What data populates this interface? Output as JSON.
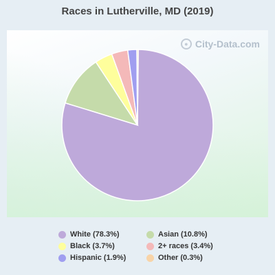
{
  "chart_data": {
    "type": "pie",
    "title": "Races in Lutherville, MD (2019)",
    "slices": [
      {
        "label": "White (78.3%)",
        "value": 78.3,
        "color": "#bea9da"
      },
      {
        "label": "Asian (10.8%)",
        "value": 10.8,
        "color": "#c5dbaa"
      },
      {
        "label": "Black (3.7%)",
        "value": 3.7,
        "color": "#fefe9c"
      },
      {
        "label": "2+ races (3.4%)",
        "value": 3.4,
        "color": "#f4b9b9"
      },
      {
        "label": "Hispanic (1.9%)",
        "value": 1.9,
        "color": "#a09ef0"
      },
      {
        "label": "Other (0.3%)",
        "value": 0.3,
        "color": "#f8d4a8"
      }
    ],
    "legend_order": [
      0,
      1,
      2,
      3,
      4,
      5
    ],
    "legend_placement": "bottom"
  },
  "watermark": {
    "text": "City-Data.com",
    "icon": "search-magnifier-icon"
  }
}
